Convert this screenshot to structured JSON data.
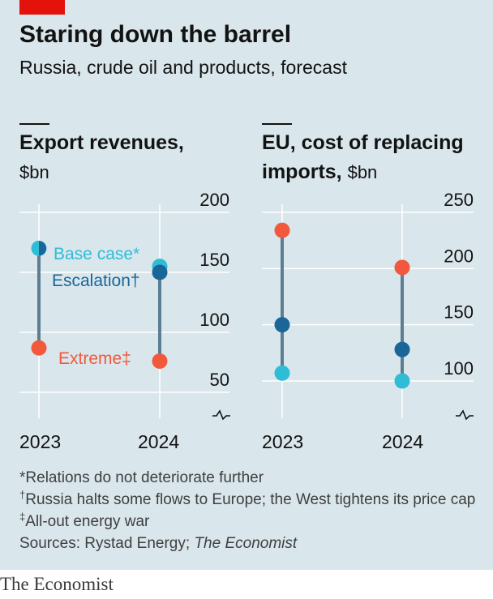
{
  "header": {
    "title": "Staring down the barrel",
    "subtitle": "Russia, crude oil and products, forecast"
  },
  "colors": {
    "background": "#d9e6ec",
    "base_case": "#2fbcd6",
    "escalation": "#1b6699",
    "extreme": "#f2583b",
    "range_line": "#5c7e93",
    "grid": "#ffffff",
    "accent": "#e3120b"
  },
  "chart_data": [
    {
      "type": "dot-range",
      "title_bold": "Export revenues,",
      "unit": "$bn",
      "categories": [
        "2023",
        "2024"
      ],
      "yticks": [
        50,
        100,
        150,
        200
      ],
      "ylim": [
        40,
        210
      ],
      "axis_break": true,
      "grid": true,
      "series": [
        {
          "name": "Base case*",
          "values": [
            170,
            155
          ],
          "color": "#2fbcd6"
        },
        {
          "name": "Escalation†",
          "values": [
            170,
            150
          ],
          "color": "#1b6699"
        },
        {
          "name": "Extreme‡",
          "values": [
            87,
            76
          ],
          "color": "#f2583b"
        }
      ]
    },
    {
      "type": "dot-range",
      "title_bold": "EU, cost of replacing imports,",
      "title_line1": "EU, cost of replacing",
      "title_line2": "imports,",
      "unit": "$bn",
      "categories": [
        "2023",
        "2024"
      ],
      "yticks": [
        100,
        150,
        200,
        250
      ],
      "ylim": [
        86,
        262
      ],
      "axis_break": true,
      "grid": true,
      "series": [
        {
          "name": "Base case",
          "values": [
            107,
            100
          ],
          "color": "#2fbcd6"
        },
        {
          "name": "Escalation",
          "values": [
            150,
            128
          ],
          "color": "#1b6699"
        },
        {
          "name": "Extreme",
          "values": [
            234,
            201
          ],
          "color": "#f2583b"
        }
      ]
    }
  ],
  "footnotes": {
    "base": "Relations do not deteriorate further",
    "escalation": "Russia halts some flows to Europe; the West tightens its price cap",
    "extreme": "All-out energy war",
    "sources_prefix": "Sources: Rystad Energy; ",
    "sources_italic": "The Economist"
  },
  "brand": "The Economist"
}
